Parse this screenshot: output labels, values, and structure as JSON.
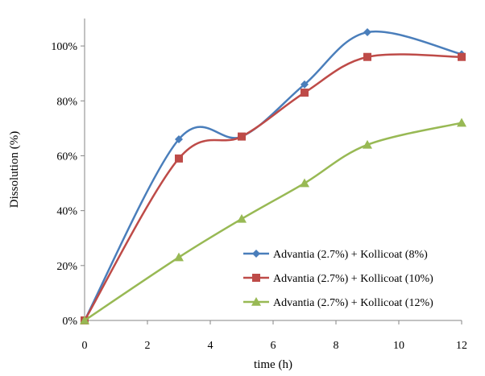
{
  "chart_data": {
    "type": "line",
    "title": "",
    "xlabel": "time (h)",
    "ylabel": "Dissolution (%)",
    "xlim": [
      0,
      12
    ],
    "ylim": [
      0,
      110
    ],
    "x_ticks": [
      0,
      2,
      4,
      6,
      8,
      10,
      12
    ],
    "y_ticks": [
      0,
      20,
      40,
      60,
      80,
      100
    ],
    "y_tick_labels": [
      "0%",
      "20%",
      "40%",
      "60%",
      "80%",
      "100%"
    ],
    "grid": false,
    "smooth": true,
    "legend_position": "bottom-right",
    "series": [
      {
        "name": "Advantia (2.7%) + Kollicoat (8%)",
        "color": "#4A7EBB",
        "marker": "diamond",
        "x": [
          0,
          3,
          5,
          7,
          9,
          12
        ],
        "y": [
          0,
          66,
          67,
          86,
          105,
          97
        ]
      },
      {
        "name": "Advantia (2.7%) + Kollicoat (10%)",
        "color": "#BE4B48",
        "marker": "square",
        "x": [
          0,
          3,
          5,
          7,
          9,
          12
        ],
        "y": [
          0,
          59,
          67,
          83,
          96,
          96
        ]
      },
      {
        "name": "Advantia (2.7%) + Kollicoat (12%)",
        "color": "#98B954",
        "marker": "triangle",
        "x": [
          0,
          3,
          5,
          7,
          9,
          12
        ],
        "y": [
          0,
          23,
          37,
          50,
          64,
          72
        ]
      }
    ]
  }
}
